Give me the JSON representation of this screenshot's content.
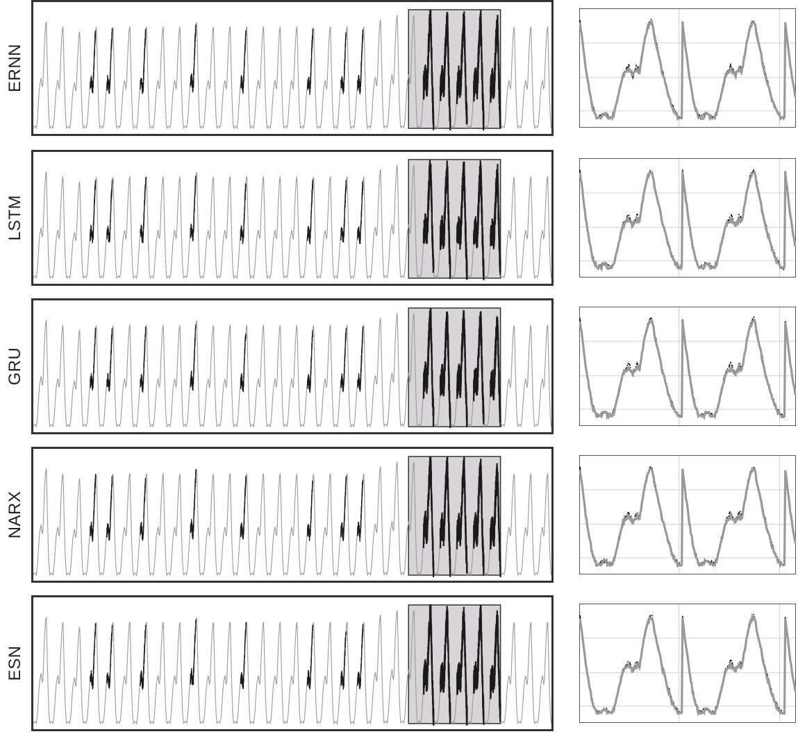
{
  "chart_data": [
    {
      "type": "line",
      "title": "",
      "xlabel": "",
      "ylabel": "",
      "rows": [
        {
          "label": "ERNN"
        },
        {
          "label": "LSTM"
        },
        {
          "label": "GRU"
        },
        {
          "label": "NARX"
        },
        {
          "label": "ESN"
        }
      ],
      "series": [
        {
          "name": "",
          "style": "actual",
          "color": "#1a1a1a"
        },
        {
          "name": "",
          "style": "predicted",
          "color": "#999999"
        }
      ],
      "cycles": 31,
      "cycle_peak_levels": [
        0.9,
        0.86,
        0.82,
        0.86,
        0.86,
        0.86,
        0.86,
        0.86,
        0.86,
        0.9,
        0.86,
        0.86,
        0.86,
        0.86,
        0.86,
        0.86,
        0.86,
        0.86,
        0.86,
        0.86,
        0.92,
        0.96,
        0.96,
        0.94,
        0.9,
        0.9,
        0.9,
        0.86,
        0.86,
        0.86,
        0.86
      ],
      "highlight_cycles": [
        23,
        28
      ],
      "highlight_color": "#d9d4d8",
      "zoom_x": [
        0,
        5
      ],
      "zoom_ylim": [
        0,
        1
      ],
      "zoom_grid": true,
      "zoom_x_ticks": 3,
      "zoom_y_ticks": 3
    }
  ]
}
